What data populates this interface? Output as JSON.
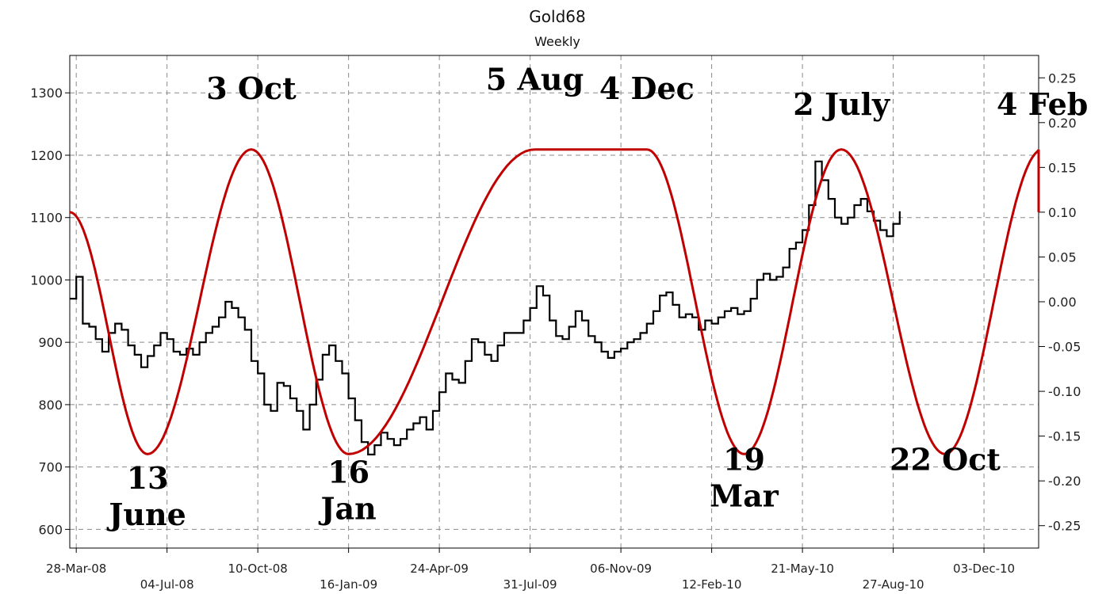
{
  "chart_data": {
    "type": "line",
    "title": "Gold68",
    "subtitle": "Weekly",
    "x_range": [
      "2008-03-21",
      "2011-01-31"
    ],
    "y_left": {
      "ticks": [
        "600",
        "700",
        "800",
        "900",
        "1000",
        "1100",
        "1200",
        "1300"
      ],
      "ylim": [
        570,
        1360
      ]
    },
    "y_right": {
      "ticks": [
        "-0.25",
        "-0.20",
        "-0.15",
        "-0.10",
        "-0.05",
        "0.00",
        "0.05",
        "0.10",
        "0.15",
        "0.20",
        "0.25"
      ],
      "ylim": [
        -0.275,
        0.275
      ]
    },
    "x_ticks_upper": [
      {
        "label": "28-Mar-08",
        "date": "2008-03-28"
      },
      {
        "label": "10-Oct-08",
        "date": "2008-10-10"
      },
      {
        "label": "24-Apr-09",
        "date": "2009-04-24"
      },
      {
        "label": "06-Nov-09",
        "date": "2009-11-06"
      },
      {
        "label": "21-May-10",
        "date": "2010-05-21"
      },
      {
        "label": "03-Dec-10",
        "date": "2010-12-03"
      }
    ],
    "x_ticks_lower": [
      {
        "label": "04-Jul-08",
        "date": "2008-07-04"
      },
      {
        "label": "16-Jan-09",
        "date": "2009-01-16"
      },
      {
        "label": "31-Jul-09",
        "date": "2009-07-31"
      },
      {
        "label": "12-Feb-10",
        "date": "2010-02-12"
      },
      {
        "label": "27-Aug-10",
        "date": "2010-08-27"
      }
    ],
    "grid": true,
    "series": [
      {
        "axis": "left",
        "color": "#000000",
        "style": "step",
        "points": [
          [
            "2008-03-21",
            970
          ],
          [
            "2008-03-28",
            1005
          ],
          [
            "2008-04-04",
            930
          ],
          [
            "2008-04-11",
            925
          ],
          [
            "2008-04-18",
            905
          ],
          [
            "2008-04-25",
            885
          ],
          [
            "2008-05-02",
            915
          ],
          [
            "2008-05-09",
            930
          ],
          [
            "2008-05-16",
            920
          ],
          [
            "2008-05-23",
            895
          ],
          [
            "2008-05-30",
            880
          ],
          [
            "2008-06-06",
            860
          ],
          [
            "2008-06-13",
            878
          ],
          [
            "2008-06-20",
            895
          ],
          [
            "2008-06-27",
            915
          ],
          [
            "2008-07-04",
            905
          ],
          [
            "2008-07-11",
            885
          ],
          [
            "2008-07-18",
            880
          ],
          [
            "2008-07-25",
            890
          ],
          [
            "2008-08-01",
            880
          ],
          [
            "2008-08-08",
            900
          ],
          [
            "2008-08-15",
            915
          ],
          [
            "2008-08-22",
            925
          ],
          [
            "2008-08-29",
            940
          ],
          [
            "2008-09-05",
            965
          ],
          [
            "2008-09-12",
            955
          ],
          [
            "2008-09-19",
            940
          ],
          [
            "2008-09-26",
            920
          ],
          [
            "2008-10-03",
            870
          ],
          [
            "2008-10-10",
            850
          ],
          [
            "2008-10-17",
            800
          ],
          [
            "2008-10-24",
            790
          ],
          [
            "2008-10-31",
            835
          ],
          [
            "2008-11-07",
            830
          ],
          [
            "2008-11-14",
            810
          ],
          [
            "2008-11-21",
            790
          ],
          [
            "2008-11-28",
            760
          ],
          [
            "2008-12-05",
            800
          ],
          [
            "2008-12-12",
            840
          ],
          [
            "2008-12-19",
            880
          ],
          [
            "2008-12-26",
            895
          ],
          [
            "2009-01-02",
            870
          ],
          [
            "2009-01-09",
            850
          ],
          [
            "2009-01-16",
            810
          ],
          [
            "2009-01-23",
            775
          ],
          [
            "2009-01-30",
            740
          ],
          [
            "2009-02-06",
            720
          ],
          [
            "2009-02-13",
            735
          ],
          [
            "2009-02-20",
            755
          ],
          [
            "2009-02-27",
            745
          ],
          [
            "2009-03-06",
            735
          ],
          [
            "2009-03-13",
            745
          ],
          [
            "2009-03-20",
            760
          ],
          [
            "2009-03-27",
            770
          ],
          [
            "2009-04-03",
            780
          ],
          [
            "2009-04-10",
            760
          ],
          [
            "2009-04-17",
            790
          ],
          [
            "2009-04-24",
            820
          ],
          [
            "2009-05-01",
            850
          ],
          [
            "2009-05-08",
            840
          ],
          [
            "2009-05-15",
            835
          ],
          [
            "2009-05-22",
            870
          ],
          [
            "2009-05-29",
            905
          ],
          [
            "2009-06-05",
            900
          ],
          [
            "2009-06-12",
            880
          ],
          [
            "2009-06-19",
            870
          ],
          [
            "2009-06-26",
            895
          ],
          [
            "2009-07-03",
            915
          ],
          [
            "2009-07-10",
            915
          ],
          [
            "2009-07-17",
            915
          ],
          [
            "2009-07-24",
            935
          ],
          [
            "2009-07-31",
            955
          ],
          [
            "2009-08-07",
            990
          ],
          [
            "2009-08-14",
            975
          ],
          [
            "2009-08-21",
            935
          ],
          [
            "2009-08-28",
            910
          ],
          [
            "2009-09-04",
            905
          ],
          [
            "2009-09-11",
            925
          ],
          [
            "2009-09-18",
            950
          ],
          [
            "2009-09-25",
            935
          ],
          [
            "2009-10-02",
            910
          ],
          [
            "2009-10-09",
            900
          ],
          [
            "2009-10-16",
            885
          ],
          [
            "2009-10-23",
            875
          ],
          [
            "2009-10-30",
            885
          ],
          [
            "2009-11-06",
            890
          ],
          [
            "2009-11-13",
            900
          ],
          [
            "2009-11-20",
            905
          ],
          [
            "2009-11-27",
            915
          ],
          [
            "2009-12-04",
            930
          ],
          [
            "2009-12-11",
            950
          ],
          [
            "2009-12-18",
            975
          ],
          [
            "2009-12-25",
            980
          ],
          [
            "2010-01-01",
            960
          ],
          [
            "2010-01-08",
            940
          ],
          [
            "2010-01-15",
            945
          ],
          [
            "2010-01-22",
            940
          ],
          [
            "2010-01-29",
            920
          ],
          [
            "2010-02-05",
            935
          ],
          [
            "2010-02-12",
            930
          ],
          [
            "2010-02-19",
            940
          ],
          [
            "2010-02-26",
            950
          ],
          [
            "2010-03-05",
            955
          ],
          [
            "2010-03-12",
            945
          ],
          [
            "2010-03-19",
            950
          ],
          [
            "2010-03-26",
            970
          ],
          [
            "2010-04-02",
            1000
          ],
          [
            "2010-04-09",
            1010
          ],
          [
            "2010-04-16",
            1000
          ],
          [
            "2010-04-23",
            1005
          ],
          [
            "2010-04-30",
            1020
          ],
          [
            "2010-05-07",
            1050
          ],
          [
            "2010-05-14",
            1060
          ],
          [
            "2010-05-21",
            1080
          ],
          [
            "2010-05-28",
            1120
          ],
          [
            "2010-06-04",
            1190
          ],
          [
            "2010-06-11",
            1160
          ],
          [
            "2010-06-18",
            1130
          ],
          [
            "2010-06-25",
            1100
          ],
          [
            "2010-07-02",
            1090
          ],
          [
            "2010-07-09",
            1100
          ],
          [
            "2010-07-16",
            1120
          ],
          [
            "2010-07-23",
            1130
          ],
          [
            "2010-07-30",
            1110
          ],
          [
            "2010-08-06",
            1095
          ],
          [
            "2010-08-13",
            1080
          ],
          [
            "2010-08-20",
            1070
          ],
          [
            "2010-08-27",
            1090
          ],
          [
            "2010-09-03",
            1110
          ]
        ]
      },
      {
        "axis": "right",
        "color": "#c00000",
        "style": "line",
        "points": [
          [
            "2008-03-21",
            0.1
          ],
          [
            "2008-06-13",
            -0.17
          ],
          [
            "2008-10-03",
            0.17
          ],
          [
            "2009-01-16",
            -0.17
          ],
          [
            "2009-08-05",
            0.17
          ],
          [
            "2009-12-04",
            0.17
          ],
          [
            "2010-03-19",
            -0.17
          ],
          [
            "2010-07-02",
            0.17
          ],
          [
            "2010-10-22",
            -0.17
          ],
          [
            "2011-02-04",
            0.17
          ],
          [
            "2011-03-01",
            0.1
          ]
        ]
      }
    ],
    "annotations": [
      {
        "lines": [
          "3 Oct"
        ],
        "date": "2008-10-03",
        "y": 1290
      },
      {
        "lines": [
          "5 Aug"
        ],
        "date": "2009-08-05",
        "y": 1305
      },
      {
        "lines": [
          "4 Dec"
        ],
        "date": "2009-12-04",
        "y": 1290
      },
      {
        "lines": [
          "2 July"
        ],
        "date": "2010-07-02",
        "y": 1265
      },
      {
        "lines": [
          "4 Feb"
        ],
        "date": "2011-02-04",
        "y": 1265
      },
      {
        "lines": [
          "13",
          "June"
        ],
        "date": "2008-06-13",
        "y": 665
      },
      {
        "lines": [
          "16",
          "Jan"
        ],
        "date": "2009-01-16",
        "y": 675
      },
      {
        "lines": [
          "19",
          "Mar"
        ],
        "date": "2010-03-19",
        "y": 695
      },
      {
        "lines": [
          "22 Oct"
        ],
        "date": "2010-10-22",
        "y": 695
      }
    ]
  }
}
